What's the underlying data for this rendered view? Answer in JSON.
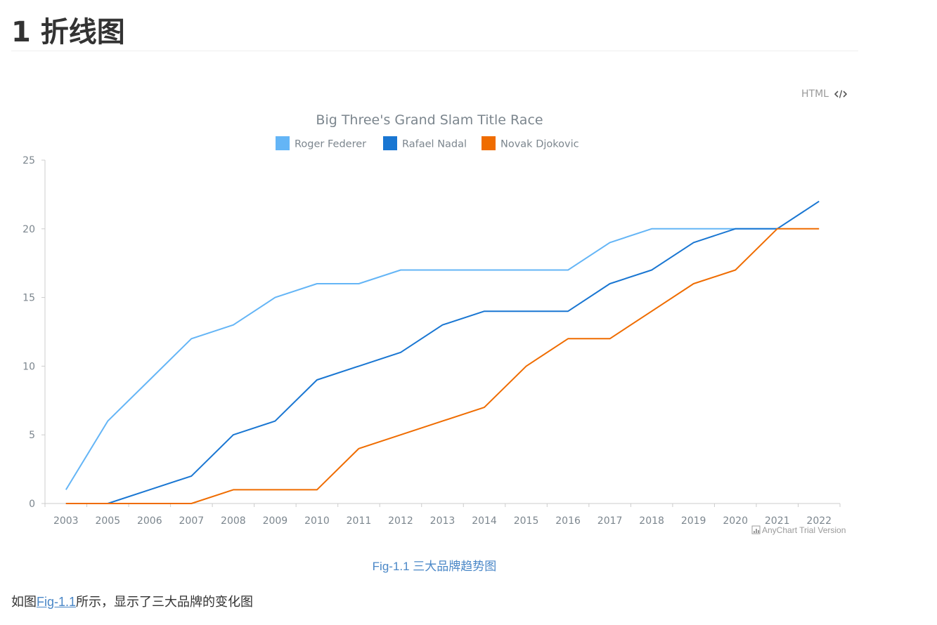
{
  "heading": "1 折线图",
  "html_toggle": {
    "label": "HTML",
    "icon": "code-icon"
  },
  "caption": "Fig-1.1 三大品牌趋势图",
  "paragraph": {
    "before": "如图",
    "link": "Fig-1.1",
    "after": "所示，显示了三大品牌的变化图"
  },
  "watermark": "AnyChart Trial Version",
  "colors": {
    "federer": "#64b5f6",
    "nadal": "#1976d2",
    "djokovic": "#ef6c00",
    "text": "#7c868e",
    "axis": "#cccccc",
    "caption": "#4a87c7"
  },
  "chart_data": {
    "type": "line",
    "title": "Big Three's Grand Slam Title Race",
    "xlabel": "",
    "ylabel": "",
    "ylim": [
      0,
      25
    ],
    "yticks": [
      0,
      5,
      10,
      15,
      20,
      25
    ],
    "grid": false,
    "legend_position": "top",
    "categories": [
      "2003",
      "2005",
      "2006",
      "2007",
      "2008",
      "2009",
      "2010",
      "2011",
      "2012",
      "2013",
      "2014",
      "2015",
      "2016",
      "2017",
      "2018",
      "2019",
      "2020",
      "2021",
      "2022"
    ],
    "series": [
      {
        "name": "Roger Federer",
        "color": "#64b5f6",
        "values": [
          1,
          6,
          9,
          12,
          13,
          15,
          16,
          16,
          17,
          17,
          17,
          17,
          17,
          19,
          20,
          20,
          20,
          20,
          null
        ]
      },
      {
        "name": "Rafael Nadal",
        "color": "#1976d2",
        "values": [
          0,
          0,
          1,
          2,
          5,
          6,
          9,
          10,
          11,
          13,
          14,
          14,
          14,
          16,
          17,
          19,
          20,
          20,
          22
        ]
      },
      {
        "name": "Novak Djokovic",
        "color": "#ef6c00",
        "values": [
          0,
          0,
          0,
          0,
          1,
          1,
          1,
          4,
          5,
          6,
          7,
          10,
          12,
          12,
          14,
          16,
          17,
          20,
          20
        ]
      }
    ]
  }
}
